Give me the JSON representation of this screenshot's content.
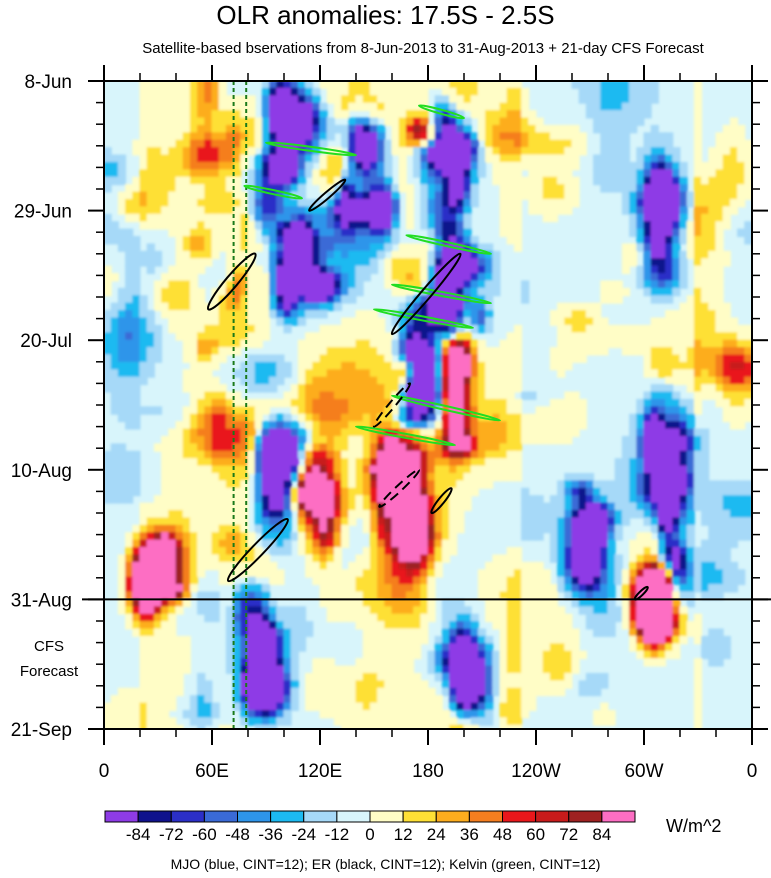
{
  "chart_data": {
    "type": "heatmap",
    "title": "OLR anomalies: 17.5S - 2.5S",
    "subtitle": "Satellite-based bservations from 8-Jun-2013 to 31-Aug-2013 + 21-day CFS Forecast",
    "x_ticks": [
      {
        "lon": 0,
        "label": "0"
      },
      {
        "lon": 60,
        "label": "60E"
      },
      {
        "lon": 120,
        "label": "120E"
      },
      {
        "lon": 180,
        "label": "180"
      },
      {
        "lon": 240,
        "label": "120W"
      },
      {
        "lon": 300,
        "label": "60W"
      },
      {
        "lon": 360,
        "label": "0"
      }
    ],
    "xlim": [
      0,
      360
    ],
    "y_ticks": [
      {
        "day": 0,
        "label": "8-Jun"
      },
      {
        "day": 21,
        "label": "29-Jun"
      },
      {
        "day": 42,
        "label": "20-Jul"
      },
      {
        "day": 63,
        "label": "10-Aug"
      },
      {
        "day": 84,
        "label": "31-Aug"
      },
      {
        "day": 105,
        "label": "21-Sep"
      }
    ],
    "ylim_days": [
      0,
      105
    ],
    "observation_end_day": 84,
    "forecast_label": [
      "CFS",
      "Forecast"
    ],
    "reference_longitudes_dotted": [
      72,
      79
    ],
    "colorbar": {
      "units": "W/m^2",
      "tick_labels": [
        "-84",
        "-72",
        "-60",
        "-48",
        "-36",
        "-24",
        "-12",
        "0",
        "12",
        "24",
        "36",
        "48",
        "60",
        "72",
        "84"
      ],
      "colors": [
        "#8e3be6",
        "#10128c",
        "#2b2fc7",
        "#3a6ad6",
        "#2e95ea",
        "#1cbaf1",
        "#a6d9f8",
        "#d8f5fb",
        "#fffdc6",
        "#fee035",
        "#fdad1e",
        "#f57e1f",
        "#e9171b",
        "#c81b1b",
        "#9e2121",
        "#fd6ec3"
      ]
    },
    "features": {
      "mjo": [],
      "er": [
        {
          "lon1": 58,
          "day1": 37,
          "lon2": 84,
          "day2": 28,
          "width": 6,
          "dashed": false
        },
        {
          "lon1": 114,
          "day1": 21,
          "lon2": 134,
          "day2": 16,
          "width": 3,
          "dashed": false
        },
        {
          "lon1": 160,
          "day1": 41,
          "lon2": 198,
          "day2": 28,
          "width": 5,
          "dashed": false
        },
        {
          "lon1": 150,
          "day1": 56,
          "lon2": 170,
          "day2": 49,
          "width": 3,
          "dashed": true
        },
        {
          "lon1": 153,
          "day1": 69,
          "lon2": 175,
          "day2": 63,
          "width": 3,
          "dashed": true
        },
        {
          "lon1": 182,
          "day1": 70,
          "lon2": 193,
          "day2": 66,
          "width": 3,
          "dashed": false
        },
        {
          "lon1": 69,
          "day1": 81,
          "lon2": 102,
          "day2": 71,
          "width": 6,
          "dashed": false
        },
        {
          "lon1": 295,
          "day1": 84,
          "lon2": 302,
          "day2": 82,
          "width": 2,
          "dashed": false
        }
      ],
      "kelvin": [
        {
          "lon1": 175,
          "day1": 4,
          "lon2": 200,
          "day2": 6,
          "width": 2
        },
        {
          "lon1": 168,
          "day1": 25,
          "lon2": 215,
          "day2": 28,
          "width": 2
        },
        {
          "lon1": 160,
          "day1": 33,
          "lon2": 215,
          "day2": 36,
          "width": 2
        },
        {
          "lon1": 150,
          "day1": 37,
          "lon2": 205,
          "day2": 40,
          "width": 2
        },
        {
          "lon1": 160,
          "day1": 51,
          "lon2": 220,
          "day2": 55,
          "width": 2
        },
        {
          "lon1": 140,
          "day1": 56,
          "lon2": 195,
          "day2": 59,
          "width": 2
        },
        {
          "lon1": 90,
          "day1": 10,
          "lon2": 140,
          "day2": 12,
          "width": 2
        },
        {
          "lon1": 78,
          "day1": 17,
          "lon2": 110,
          "day2": 19,
          "width": 2
        }
      ]
    }
  },
  "footnote": "MJO (blue, CINT=12); ER (black, CINT=12); Kelvin (green, CINT=12)"
}
